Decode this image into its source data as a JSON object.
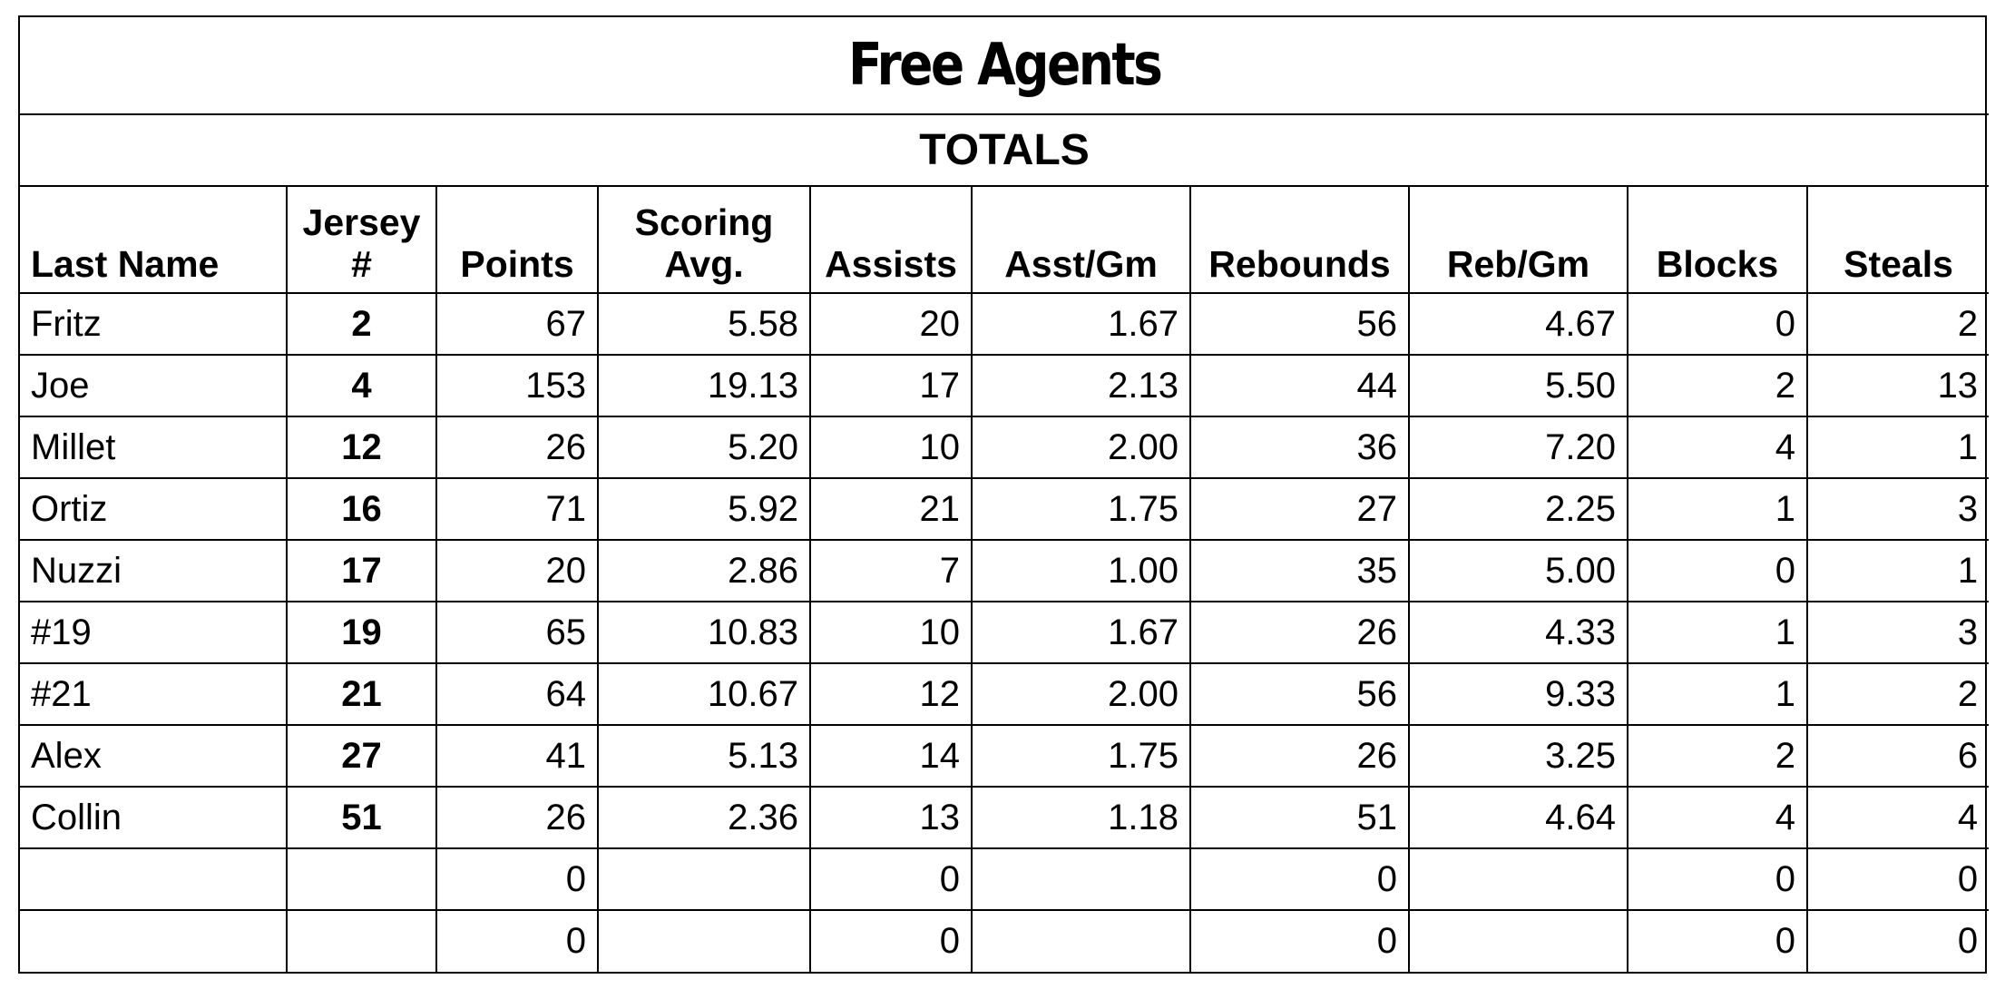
{
  "sheet": {
    "title": "Free Agents",
    "subtitle": "TOTALS"
  },
  "columns": [
    "Last Name",
    "Jersey #",
    "Points",
    "Scoring Avg.",
    "Assists",
    "Asst/Gm",
    "Rebounds",
    "Reb/Gm",
    "Blocks",
    "Steals"
  ],
  "rows": [
    [
      "Fritz",
      "2",
      "67",
      "5.58",
      "20",
      "1.67",
      "56",
      "4.67",
      "0",
      "2"
    ],
    [
      "Joe",
      "4",
      "153",
      "19.13",
      "17",
      "2.13",
      "44",
      "5.50",
      "2",
      "13"
    ],
    [
      "Millet",
      "12",
      "26",
      "5.20",
      "10",
      "2.00",
      "36",
      "7.20",
      "4",
      "1"
    ],
    [
      "Ortiz",
      "16",
      "71",
      "5.92",
      "21",
      "1.75",
      "27",
      "2.25",
      "1",
      "3"
    ],
    [
      "Nuzzi",
      "17",
      "20",
      "2.86",
      "7",
      "1.00",
      "35",
      "5.00",
      "0",
      "1"
    ],
    [
      "#19",
      "19",
      "65",
      "10.83",
      "10",
      "1.67",
      "26",
      "4.33",
      "1",
      "3"
    ],
    [
      "#21",
      "21",
      "64",
      "10.67",
      "12",
      "2.00",
      "56",
      "9.33",
      "1",
      "2"
    ],
    [
      "Alex",
      "27",
      "41",
      "5.13",
      "14",
      "1.75",
      "26",
      "3.25",
      "2",
      "6"
    ],
    [
      "Collin",
      "51",
      "26",
      "2.36",
      "13",
      "1.18",
      "51",
      "4.64",
      "4",
      "4"
    ],
    [
      "",
      "",
      "0",
      "",
      "0",
      "",
      "0",
      "",
      "0",
      "0"
    ],
    [
      "",
      "",
      "0",
      "",
      "0",
      "",
      "0",
      "",
      "0",
      "0"
    ]
  ]
}
